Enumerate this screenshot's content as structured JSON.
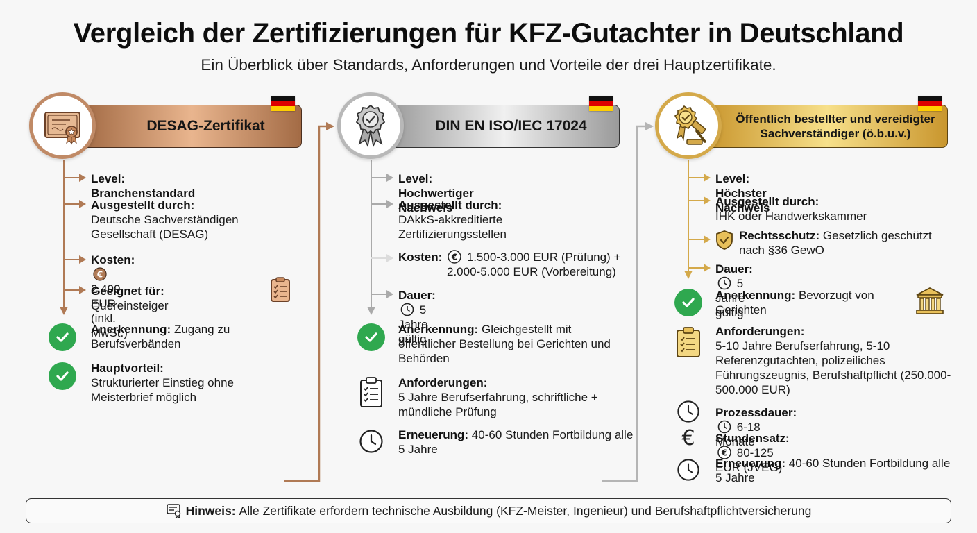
{
  "header": {
    "title": "Vergleich der Zertifizierungen für KFZ-Gutachter in Deutschland",
    "subtitle": "Ein Überblick über Standards, Anforderungen und Vorteile der drei Hauptzertifikate."
  },
  "colors": {
    "bronze": "#b07a55",
    "silver": "#9a9a9a",
    "gold": "#d4a94a",
    "check_green": "#2fa84f"
  },
  "col1": {
    "title": "DESAG-Zertifikat",
    "icon": "certificate-icon",
    "level_label": "Level:",
    "level_value": "Branchenstandard",
    "issued_label": "Ausgestellt durch:",
    "issued_value": "Deutsche Sachverständigen Gesellschaft (DESAG)",
    "cost_label": "Kosten:",
    "cost_value": "2.499 EUR (inkl. MwSt.)",
    "fit_label": "Geeignet für:",
    "fit_value": "Quereinsteiger",
    "recog_label": "Anerkennung:",
    "recog_value": "Zugang zu Berufsverbänden",
    "main_label": "Hauptvorteil:",
    "main_value": "Strukturierter Einstieg ohne Meisterbrief möglich"
  },
  "col2": {
    "title": "DIN EN ISO/IEC 17024",
    "icon": "award-seal-icon",
    "level_label": "Level:",
    "level_value": "Hochwertiger Nachweis",
    "issued_label": "Ausgestellt durch:",
    "issued_value": "DAkkS-akkreditierte Zertifizierungsstellen",
    "cost_label": "Kosten:",
    "cost_value_1": "1.500-3.000 EUR (Prüfung) +",
    "cost_value_2": "2.000-5.000 EUR (Vorbereitung)",
    "duration_label": "Dauer:",
    "duration_value": "5 Jahre gültig",
    "recog_label": "Anerkennung:",
    "recog_value": "Gleichgestellt mit öffentlicher Bestellung bei Gerichten und Behörden",
    "req_label": "Anforderungen:",
    "req_value": "5 Jahre Berufserfahrung, schriftliche + mündliche Prüfung",
    "renew_label": "Erneuerung:",
    "renew_value": "40-60 Stunden Fortbildung alle 5 Jahre"
  },
  "col3": {
    "title": "Öffentlich bestellter und vereidigter Sachverständiger (ö.b.u.v.)",
    "icon": "gavel-seal-icon",
    "level_label": "Level:",
    "level_value": "Höchster Nachweis",
    "issued_label": "Ausgestellt durch:",
    "issued_value": "IHK oder Handwerkskammer",
    "legal_label": "Rechtsschutz:",
    "legal_value": "Gesetzlich geschützt nach §36 GewO",
    "duration_label": "Dauer:",
    "duration_value": "5 Jahre gültig",
    "recog_label": "Anerkennung:",
    "recog_value": "Bevorzugt von Gerichten",
    "req_label": "Anforderungen:",
    "req_value": "5-10 Jahre Berufserfahrung, 5-10 Referenzgutachten, polizeiliches Führungszeugnis, Berufshaftpflicht (250.000-500.000 EUR)",
    "process_label": "Prozessdauer:",
    "process_value": "6-18 Monate",
    "rate_label": "Stundensatz:",
    "rate_value": "80-125 EUR (JVEG)",
    "renew_label": "Erneuerung:",
    "renew_value": "40-60 Stunden Fortbildung alle 5 Jahre"
  },
  "footer": {
    "label": "Hinweis:",
    "text": "Alle Zertifikate erfordern technische Ausbildung (KFZ-Meister, Ingenieur) und Berufshaftpflichtversicherung"
  }
}
